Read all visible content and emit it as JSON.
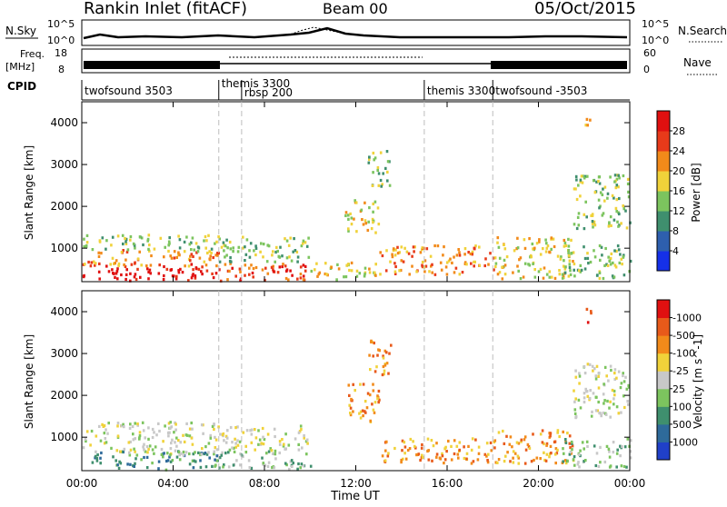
{
  "header": {
    "station": "Rankin Inlet (fitACF)",
    "beam": "Beam 00",
    "date": "05/Oct/2015"
  },
  "strip_labels": {
    "nsky": "N.Sky",
    "nsky_hi": "10^5",
    "nsky_lo": "10^0",
    "nsearch": "N.Search",
    "nsearch_hi": "10^5",
    "nsearch_lo": "10^0",
    "freq_line1": "Freq.",
    "freq_line2": "[MHz]",
    "freq_hi": "18",
    "freq_lo": "8",
    "nave": "Nave",
    "nave_hi": "60",
    "nave_lo": "0",
    "cpid": "CPID"
  },
  "cpid_segments": [
    {
      "label": "twofsound 3503",
      "start": 0.0,
      "end": 6.0
    },
    {
      "label": "themis 3300",
      "start": 6.0,
      "end": 7.0
    },
    {
      "label": "rbsp 200",
      "start": 7.0,
      "end": 15.0
    },
    {
      "label": "themis 3300",
      "start": 15.0,
      "end": 18.0
    },
    {
      "label": "twofsound -3503",
      "start": 18.0,
      "end": 24.0
    }
  ],
  "chart_data": [
    {
      "type": "heatmap",
      "name": "power",
      "ylabel": "Slant Range [km]",
      "ylim": [
        200,
        4500
      ],
      "xlim": [
        0,
        24
      ],
      "y_ticks": [
        1000,
        2000,
        3000,
        4000
      ],
      "colorbar": {
        "label": "Power [dB]",
        "ticks": [
          "4",
          "8",
          "12",
          "16",
          "20",
          "24",
          "28"
        ],
        "colors": [
          "#1530e8",
          "#2e5fae",
          "#3f8f6e",
          "#7cc45e",
          "#f0d23a",
          "#f28a1a",
          "#e83a1a",
          "#e01010"
        ]
      },
      "scatter_regions": [
        {
          "t0": 0.0,
          "t1": 6.0,
          "r0": 250,
          "r1": 650,
          "level": 7
        },
        {
          "t0": 0.0,
          "t1": 6.0,
          "r0": 600,
          "r1": 1000,
          "level": 5
        },
        {
          "t0": 0.0,
          "t1": 6.0,
          "r0": 950,
          "r1": 1350,
          "level": 3
        },
        {
          "t0": 6.0,
          "t1": 10.0,
          "r0": 250,
          "r1": 700,
          "level": 6
        },
        {
          "t0": 6.0,
          "t1": 10.0,
          "r0": 700,
          "r1": 1300,
          "level": 3
        },
        {
          "t0": 10.0,
          "t1": 13.0,
          "r0": 250,
          "r1": 700,
          "level": 4
        },
        {
          "t0": 11.5,
          "t1": 13.0,
          "r0": 1400,
          "r1": 2200,
          "level": 4
        },
        {
          "t0": 12.5,
          "t1": 13.5,
          "r0": 2500,
          "r1": 3400,
          "level": 3
        },
        {
          "t0": 13.0,
          "t1": 18.0,
          "r0": 400,
          "r1": 1100,
          "level": 5
        },
        {
          "t0": 18.0,
          "t1": 21.5,
          "r0": 300,
          "r1": 1300,
          "level": 4
        },
        {
          "t0": 21.0,
          "t1": 24.0,
          "r0": 300,
          "r1": 1100,
          "level": 3
        },
        {
          "t0": 21.5,
          "t1": 24.0,
          "r0": 1500,
          "r1": 2800,
          "level": 3
        },
        {
          "t0": 22.0,
          "t1": 22.3,
          "r0": 3700,
          "r1": 4200,
          "level": 4
        }
      ]
    },
    {
      "type": "heatmap",
      "name": "velocity",
      "ylabel": "Slant Range [km]",
      "ylim": [
        200,
        4500
      ],
      "xlim": [
        0,
        24
      ],
      "y_ticks": [
        1000,
        2000,
        3000,
        4000
      ],
      "colorbar": {
        "label": "Velocity [m s^-1]",
        "ticks": [
          "1000",
          "500",
          "100",
          "25",
          "-25",
          "-100",
          "-500",
          "-1000"
        ],
        "colors": [
          "#2040c8",
          "#2e6a9a",
          "#3f8f6e",
          "#7cc45e",
          "#c8c8c8",
          "#f0d23a",
          "#f28a1a",
          "#e85a1a",
          "#e01010"
        ]
      },
      "scatter_regions": [
        {
          "t0": 0.0,
          "t1": 6.0,
          "r0": 250,
          "r1": 700,
          "level": 2
        },
        {
          "t0": 0.0,
          "t1": 6.0,
          "r0": 600,
          "r1": 1400,
          "level": 4
        },
        {
          "t0": 6.0,
          "t1": 10.0,
          "r0": 250,
          "r1": 700,
          "level": 3
        },
        {
          "t0": 6.0,
          "t1": 10.0,
          "r0": 700,
          "r1": 1300,
          "level": 4
        },
        {
          "t0": 11.5,
          "t1": 13.0,
          "r0": 1400,
          "r1": 2300,
          "level": 6
        },
        {
          "t0": 12.5,
          "t1": 13.5,
          "r0": 2500,
          "r1": 3400,
          "level": 6
        },
        {
          "t0": 13.0,
          "t1": 18.0,
          "r0": 400,
          "r1": 1000,
          "level": 6
        },
        {
          "t0": 18.0,
          "t1": 21.5,
          "r0": 400,
          "r1": 1200,
          "level": 6
        },
        {
          "t0": 21.0,
          "t1": 24.0,
          "r0": 300,
          "r1": 1000,
          "level": 3
        },
        {
          "t0": 21.5,
          "t1": 24.0,
          "r0": 1500,
          "r1": 2800,
          "level": 4
        },
        {
          "t0": 22.0,
          "t1": 22.3,
          "r0": 3700,
          "r1": 4200,
          "level": 7
        }
      ]
    }
  ],
  "x_axis": {
    "ticks": [
      "00:00",
      "04:00",
      "08:00",
      "12:00",
      "16:00",
      "20:00",
      "00:00"
    ],
    "tick_hours": [
      0,
      4,
      8,
      12,
      16,
      20,
      24
    ],
    "label": "Time UT"
  },
  "mode_change_hours": [
    6.0,
    7.0,
    15.0,
    18.0
  ]
}
